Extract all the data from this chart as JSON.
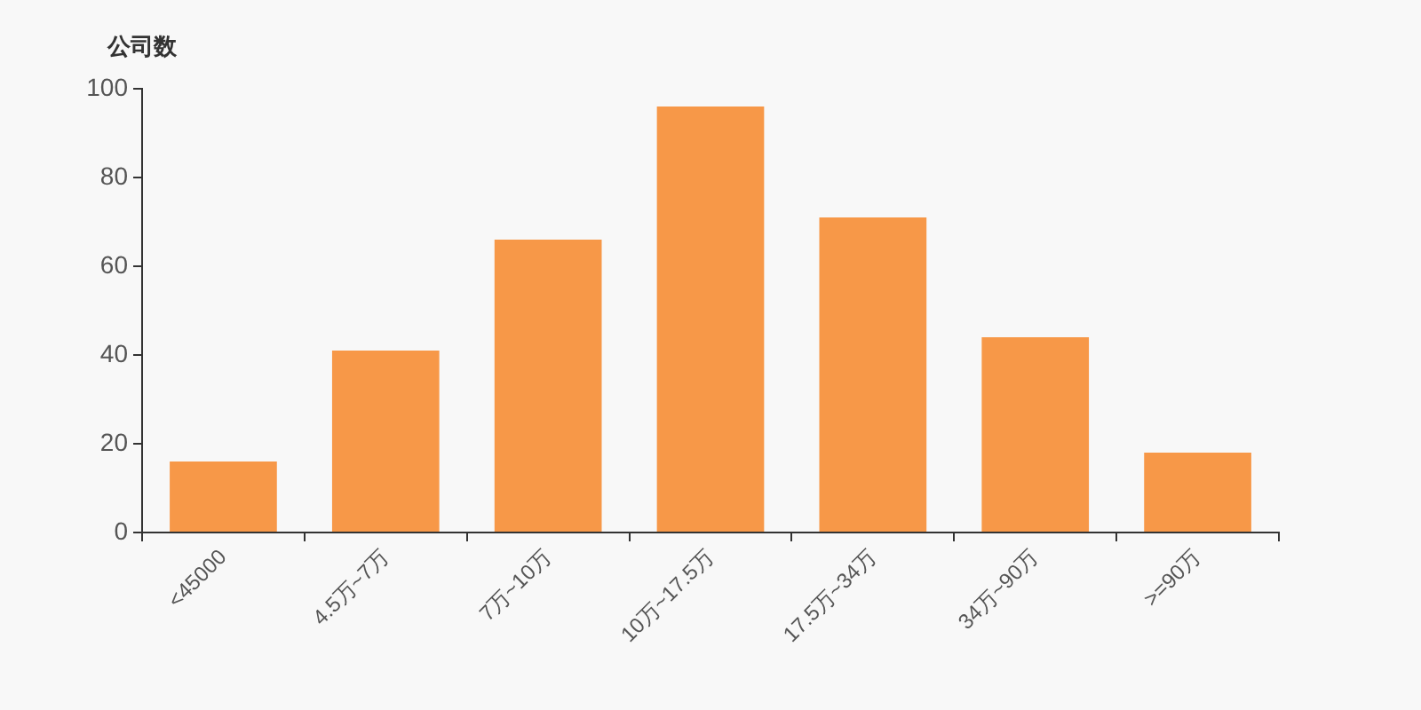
{
  "chart_data": {
    "type": "bar",
    "ylabel": "公司数",
    "categories": [
      "<45000",
      "4.5万~7万",
      "7万~10万",
      "10万~17.5万",
      "17.5万~34万",
      "34万~90万",
      ">=90万"
    ],
    "values": [
      16,
      41,
      66,
      96,
      71,
      44,
      18
    ],
    "color": "#f79848",
    "ylim": [
      0,
      100
    ],
    "yticks": [
      0,
      20,
      40,
      60,
      80,
      100
    ]
  }
}
